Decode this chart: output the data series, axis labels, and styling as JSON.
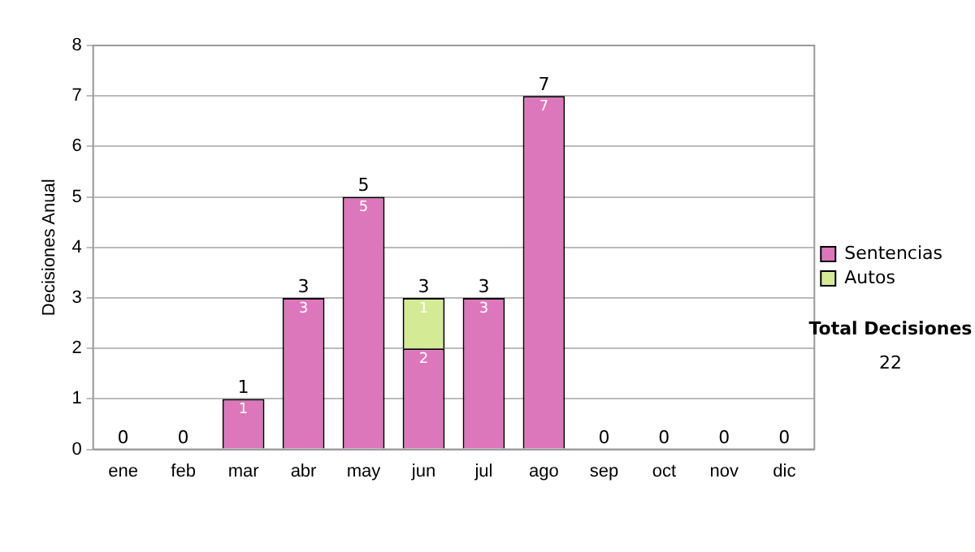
{
  "chart_data": {
    "type": "bar",
    "stacked": true,
    "ylabel": "Decisiones Anual",
    "categories": [
      "ene",
      "feb",
      "mar",
      "abr",
      "may",
      "jun",
      "jul",
      "ago",
      "sep",
      "oct",
      "nov",
      "dic"
    ],
    "series": [
      {
        "name": "Sentencias",
        "color": "#dd77bb",
        "values": [
          0,
          0,
          1,
          3,
          5,
          2,
          3,
          7,
          0,
          0,
          0,
          0
        ],
        "value_labels": [
          null,
          null,
          "1",
          "3",
          "5",
          "2",
          "3",
          "7",
          null,
          null,
          null,
          null
        ]
      },
      {
        "name": "Autos",
        "color": "#d4ea94",
        "values": [
          0,
          0,
          0,
          0,
          0,
          1,
          0,
          0,
          0,
          0,
          0,
          0
        ],
        "value_labels": [
          null,
          null,
          null,
          null,
          null,
          "1",
          null,
          null,
          null,
          null,
          null,
          null
        ]
      }
    ],
    "totals": [
      "0",
      "0",
      "1",
      "3",
      "5",
      "3",
      "3",
      "7",
      "0",
      "0",
      "0",
      "0"
    ],
    "ylim": [
      0,
      8
    ],
    "yticks": [
      0,
      1,
      2,
      3,
      4,
      5,
      6,
      7,
      8
    ],
    "grid": "y",
    "legend": "right",
    "annotations": [
      "Total Decisiones",
      "22"
    ]
  }
}
